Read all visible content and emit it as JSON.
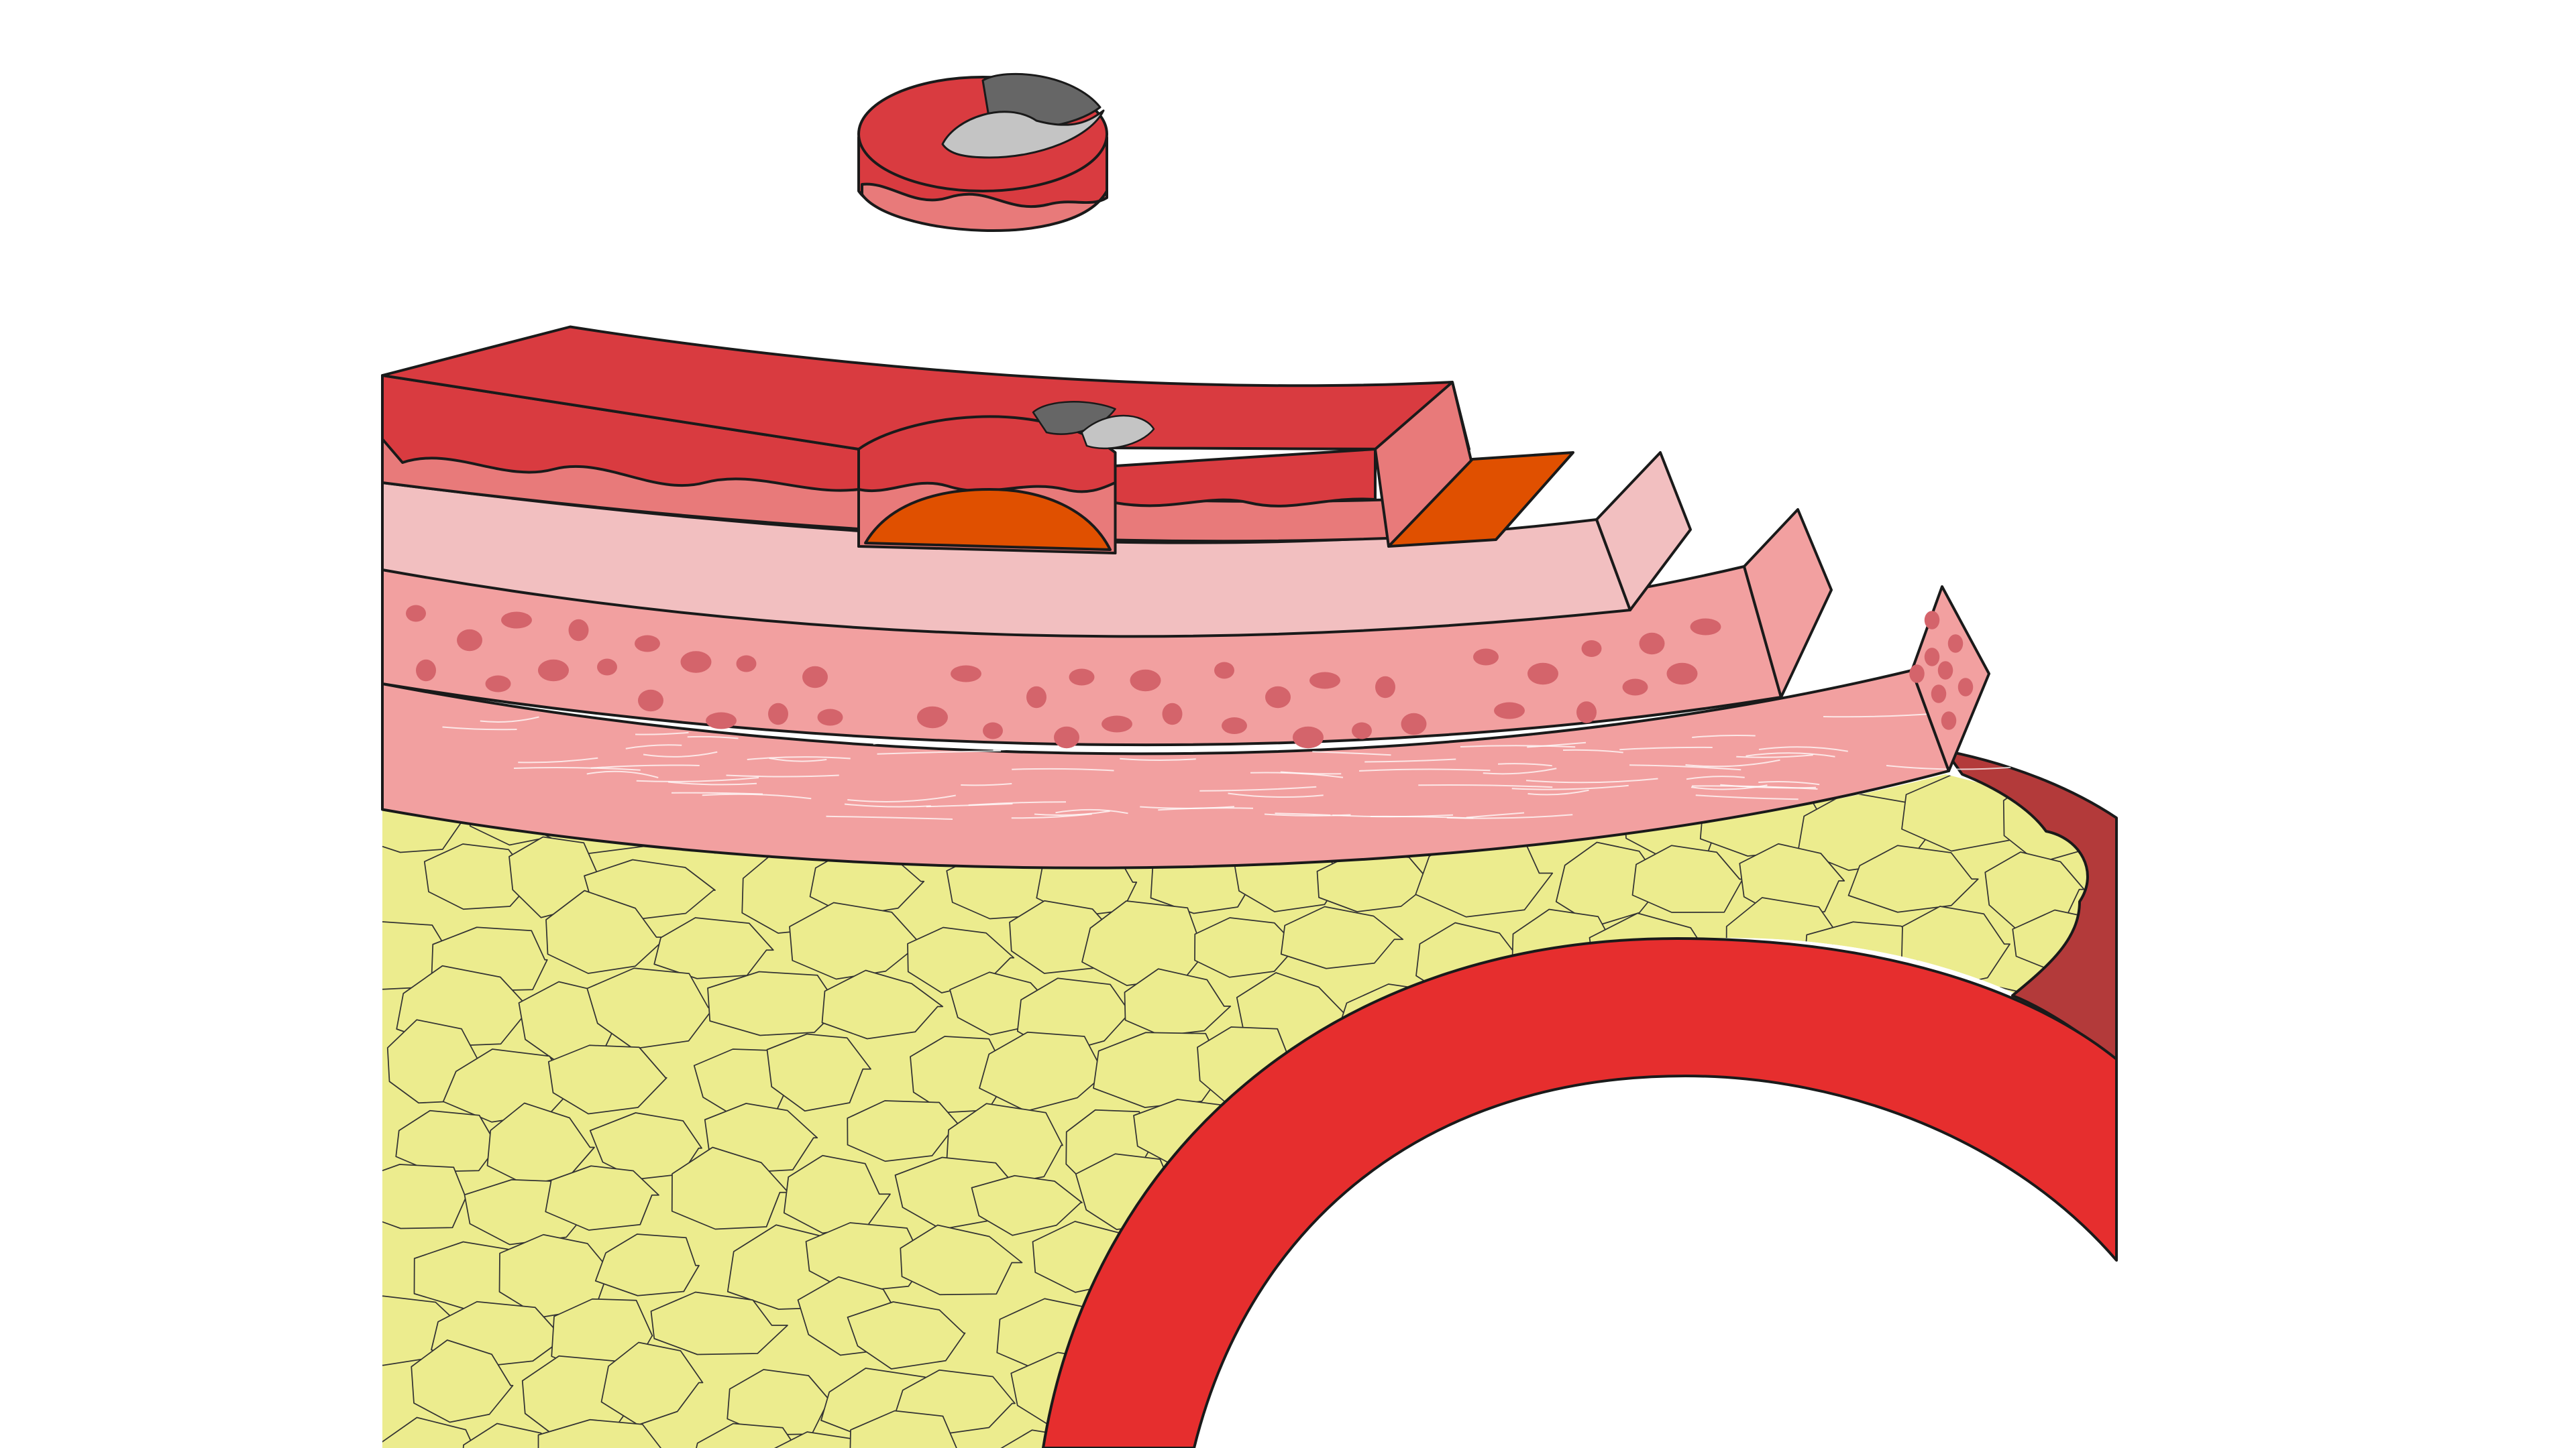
{
  "diagram": {
    "kind": "anatomical-cross-section",
    "labels_shown": false,
    "elements": [
      "biopsy-core-sample",
      "mucosa-layer",
      "submucosa-layer",
      "muscularis-inner-layer",
      "muscularis-outer-layer",
      "adipose-tissue",
      "blood-vessel"
    ]
  },
  "colors": {
    "outline": "#1a1a1a",
    "mucosa_top": "#d93b40",
    "mucosa_lower": "#e87a7a",
    "lesion_core": "#e05000",
    "submucosa": "#f2bfc0",
    "muscle": "#f2a0a0",
    "muscle_dots": "#d4646b",
    "fat": "#ecec8e",
    "vessel_wall": "#e62e2e",
    "vessel_outer": "#b33a3a",
    "stain_dark": "#666666",
    "stain_light": "#c4c4c4"
  }
}
